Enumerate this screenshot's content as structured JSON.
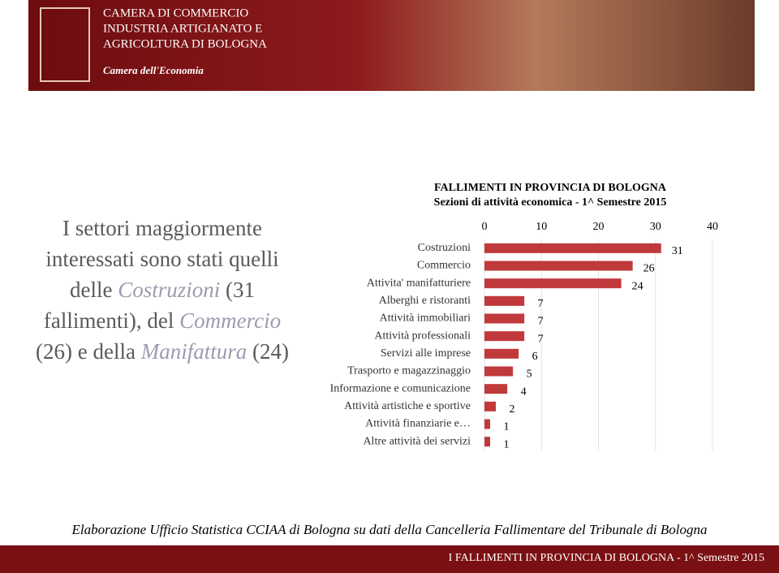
{
  "header": {
    "logo_lines": [
      "CAMERA DI COMMERCIO",
      "INDUSTRIA ARTIGIANATO E",
      "AGRICOLTURA DI BOLOGNA"
    ],
    "logo_subtitle": "Camera dell'Economia"
  },
  "intro": [
    "I settori maggiormente interessati sono stati quelli delle ",
    "Costruzioni",
    " (31 fallimenti), del ",
    "Commercio",
    " (26) e della ",
    "Manifattura",
    " (24)"
  ],
  "chart_data": {
    "type": "bar",
    "orientation": "horizontal",
    "title": "FALLIMENTI IN PROVINCIA DI BOLOGNA",
    "subtitle": "Sezioni di attività economica  - 1^ Semestre 2015",
    "categories": [
      "Costruzioni",
      "Commercio",
      "Attivita' manifatturiere",
      "Alberghi e ristoranti",
      "Attività immobiliari",
      "Attività professionali",
      "Servizi alle imprese",
      "Trasporto e magazzinaggio",
      "Informazione e comunicazione",
      "Attività artistiche e sportive",
      "Attività finanziarie e…",
      "Altre attività dei servizi"
    ],
    "values": [
      31,
      26,
      24,
      7,
      7,
      7,
      6,
      5,
      4,
      2,
      1,
      1
    ],
    "color": "#c0393b",
    "xlim": [
      0,
      40
    ],
    "xticks": [
      0,
      10,
      20,
      30,
      40
    ],
    "grid": true
  },
  "footer": {
    "source": "Elaborazione Ufficio Statistica CCIAA di Bologna su dati della Cancelleria Fallimentare del Tribunale di Bologna",
    "band": "I FALLIMENTI IN PROVINCIA DI BOLOGNA - 1^ Semestre 2015"
  }
}
